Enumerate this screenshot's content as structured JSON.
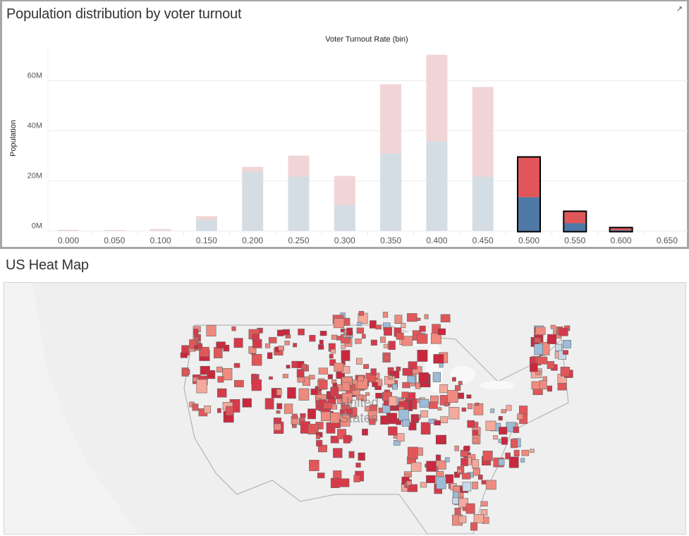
{
  "dashboard": {
    "chart_panel_title": "Population distribution by voter turnout",
    "popout_icon": "external-link-icon",
    "map_panel_title": "US Heat Map",
    "map_label": [
      "United",
      "States"
    ]
  },
  "colors": {
    "red": "#e15759",
    "blue": "#4e79a7",
    "red_faded": "#f1d5d6",
    "blue_faded": "#d5dde4",
    "highlight_border": "#000000"
  },
  "chart_data": {
    "type": "bar",
    "stacked": true,
    "title": "Voter Turnout Rate (bin)",
    "xlabel": "Voter Turnout Rate (bin)",
    "ylabel": "Population",
    "categories": [
      "0.000",
      "0.050",
      "0.100",
      "0.150",
      "0.200",
      "0.250",
      "0.300",
      "0.350",
      "0.400",
      "0.450",
      "0.500",
      "0.550",
      "0.600",
      "0.650"
    ],
    "series": [
      {
        "color": "#4e79a7",
        "values": [
          0.1,
          0.1,
          0.2,
          4.5,
          23.7,
          21.7,
          10.4,
          31.0,
          35.8,
          21.7,
          13.5,
          3.1,
          0.3,
          0
        ]
      },
      {
        "color": "#e15759",
        "values": [
          0.4,
          0.3,
          0.6,
          1.4,
          1.9,
          8.4,
          11.6,
          27.6,
          34.6,
          35.8,
          15.8,
          4.5,
          0.8,
          0
        ]
      }
    ],
    "highlighted": [
      "0.500",
      "0.550",
      "0.600"
    ],
    "yticks": [
      "0M",
      "20M",
      "40M",
      "60M"
    ],
    "ytick_values": [
      0,
      20,
      40,
      60
    ],
    "yunit": "M",
    "ylim": [
      0,
      72
    ],
    "grid": true,
    "legend": "none"
  }
}
